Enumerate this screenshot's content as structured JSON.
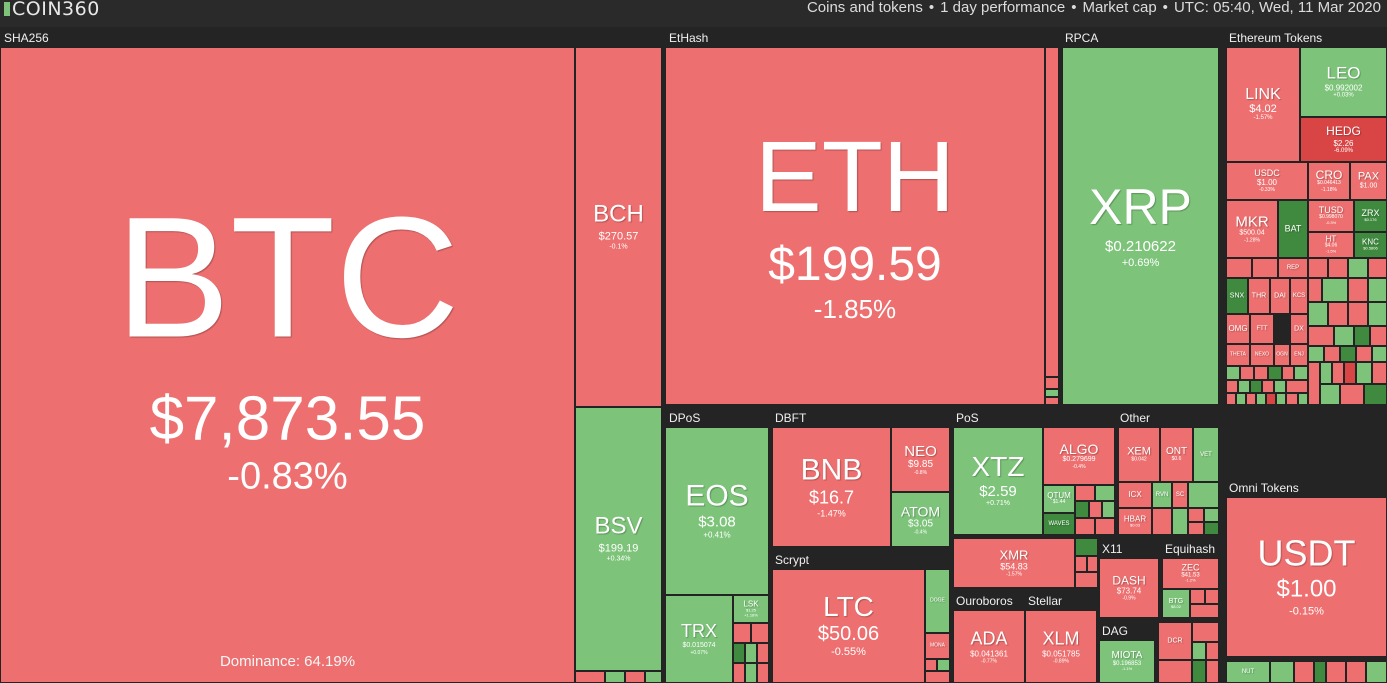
{
  "header": {
    "logo_text": "COIN360",
    "filters": [
      "Coins and tokens",
      "1 day performance",
      "Market cap"
    ],
    "datetime": "UTC: 05:40, Wed, 11 Mar 2020"
  },
  "groups": {
    "sha256": "SHA256",
    "ethash": "EtHash",
    "rpca": "RPCA",
    "ethereum_tokens": "Ethereum Tokens",
    "dpos": "DPoS",
    "dbft": "DBFT",
    "pos": "PoS",
    "other": "Other",
    "scrypt": "Scrypt",
    "x11": "X11",
    "equihash": "Equihash",
    "ouroboros": "Ouroboros",
    "stellar": "Stellar",
    "dag": "DAG",
    "omni_tokens": "Omni Tokens"
  },
  "coins": {
    "btc": {
      "symbol": "BTC",
      "price": "$7,873.55",
      "change": "-0.83%",
      "dominance": "Dominance: 64.19%"
    },
    "bch": {
      "symbol": "BCH",
      "price": "$270.57",
      "change": "-0.1%"
    },
    "bsv": {
      "symbol": "BSV",
      "price": "$199.19",
      "change": "+0.34%"
    },
    "eth": {
      "symbol": "ETH",
      "price": "$199.59",
      "change": "-1.85%"
    },
    "xrp": {
      "symbol": "XRP",
      "price": "$0.210622",
      "change": "+0.69%"
    },
    "link": {
      "symbol": "LINK",
      "price": "$4.02",
      "change": "-1.57%"
    },
    "leo": {
      "symbol": "LEO",
      "price": "$0.992002",
      "change": "+0.03%"
    },
    "hedg": {
      "symbol": "HEDG",
      "price": "$2.26",
      "change": "-6.09%"
    },
    "usdc": {
      "symbol": "USDC",
      "price": "$1.00",
      "change": "-0.33%"
    },
    "cro": {
      "symbol": "CRO",
      "price": "$0.046413",
      "change": "-1.18%"
    },
    "pax": {
      "symbol": "PAX",
      "price": "$1.00",
      "change": ""
    },
    "mkr": {
      "symbol": "MKR",
      "price": "$500.04",
      "change": "-1.28%"
    },
    "bat": {
      "symbol": "BAT",
      "price": "",
      "change": ""
    },
    "tusd": {
      "symbol": "TUSD",
      "price": "$0.998070",
      "change": "-0.3%"
    },
    "zrx": {
      "symbol": "ZRX",
      "price": "$0.176",
      "change": ""
    },
    "ht": {
      "symbol": "HT",
      "price": "$4.06",
      "change": "-1.5%"
    },
    "knc": {
      "symbol": "KNC",
      "price": "$0.5806",
      "change": ""
    },
    "snx": {
      "symbol": "SNX"
    },
    "thr": {
      "symbol": "THR"
    },
    "dai": {
      "symbol": "DAI"
    },
    "kcs": {
      "symbol": "KCS"
    },
    "rep": {
      "symbol": "REP"
    },
    "omg": {
      "symbol": "OMG"
    },
    "ftt": {
      "symbol": "FTT"
    },
    "dx": {
      "symbol": "DX"
    },
    "theta": {
      "symbol": "THETA"
    },
    "nexo": {
      "symbol": "NEXO"
    },
    "ogn": {
      "symbol": "OGN"
    },
    "enj": {
      "symbol": "ENJ"
    },
    "eos": {
      "symbol": "EOS",
      "price": "$3.08",
      "change": "+0.41%"
    },
    "trx": {
      "symbol": "TRX",
      "price": "$0.015074",
      "change": "+0.07%"
    },
    "lsk": {
      "symbol": "LSK",
      "price": "$1.25",
      "change": "+1.18%"
    },
    "bnb": {
      "symbol": "BNB",
      "price": "$16.7",
      "change": "-1.47%"
    },
    "neo": {
      "symbol": "NEO",
      "price": "$9.85",
      "change": "-0.8%"
    },
    "atom": {
      "symbol": "ATOM",
      "price": "$3.05",
      "change": "-0.4%"
    },
    "xtz": {
      "symbol": "XTZ",
      "price": "$2.59",
      "change": "+0.71%"
    },
    "algo": {
      "symbol": "ALGO",
      "price": "$0.279699",
      "change": "-0.4%"
    },
    "qtum": {
      "symbol": "QTUM",
      "price": "$1.44",
      "change": ""
    },
    "waves": {
      "symbol": "WAVES",
      "price": "",
      "change": ""
    },
    "xmr": {
      "symbol": "XMR",
      "price": "$54.83",
      "change": "-1.57%"
    },
    "xem": {
      "symbol": "XEM",
      "price": "$0.042",
      "change": ""
    },
    "ont": {
      "symbol": "ONT",
      "price": "$0.6",
      "change": ""
    },
    "vet": {
      "symbol": "VET"
    },
    "icx": {
      "symbol": "ICX"
    },
    "rvn": {
      "symbol": "RVN"
    },
    "sc": {
      "symbol": "SC"
    },
    "hbar": {
      "symbol": "HBAR",
      "price": "$0.03",
      "change": ""
    },
    "ltc": {
      "symbol": "LTC",
      "price": "$50.06",
      "change": "-0.55%"
    },
    "doge": {
      "symbol": "DOGE"
    },
    "mona": {
      "symbol": "MONA"
    },
    "dash": {
      "symbol": "DASH",
      "price": "$73.74",
      "change": "-0.9%"
    },
    "zec": {
      "symbol": "ZEC",
      "price": "$41.53",
      "change": "-1.2%"
    },
    "btg": {
      "symbol": "BTG",
      "price": "$8.02",
      "change": ""
    },
    "ada": {
      "symbol": "ADA",
      "price": "$0.041361",
      "change": "-0.77%"
    },
    "xlm": {
      "symbol": "XLM",
      "price": "$0.051785",
      "change": "-0.89%"
    },
    "miota": {
      "symbol": "MIOTA",
      "price": "$0.196853",
      "change": "-1.1%"
    },
    "dcr": {
      "symbol": "DCR"
    },
    "usdt": {
      "symbol": "USDT",
      "price": "$1.00",
      "change": "-0.15%"
    },
    "nut": {
      "symbol": "NUT"
    }
  }
}
